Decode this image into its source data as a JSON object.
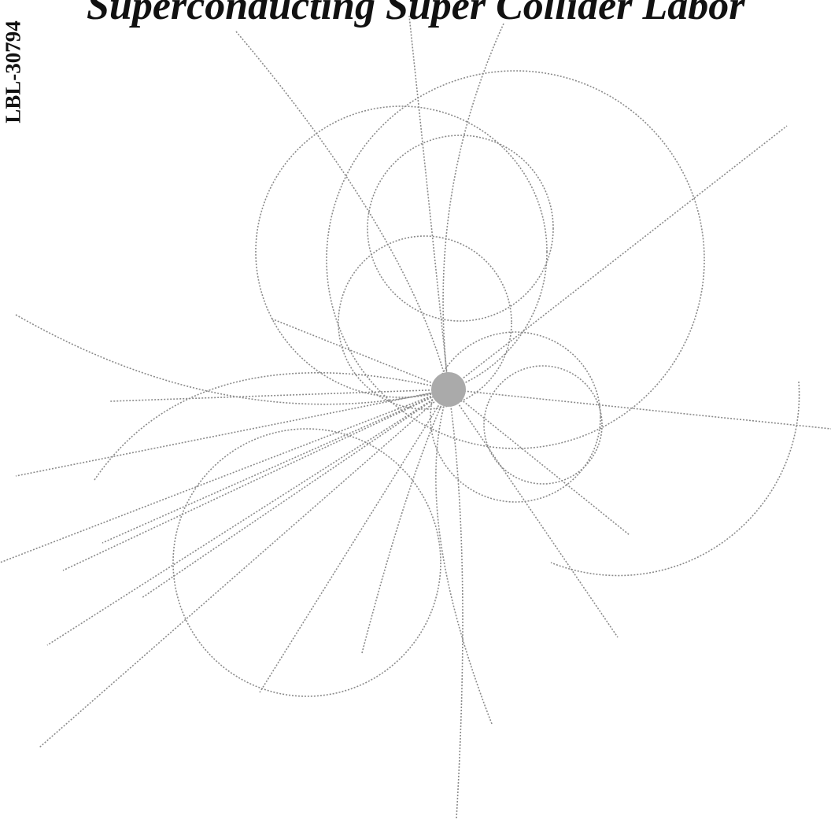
{
  "header": {
    "title": "Superconducting Super Collider Labor",
    "report_number": "LBL-30794"
  }
}
